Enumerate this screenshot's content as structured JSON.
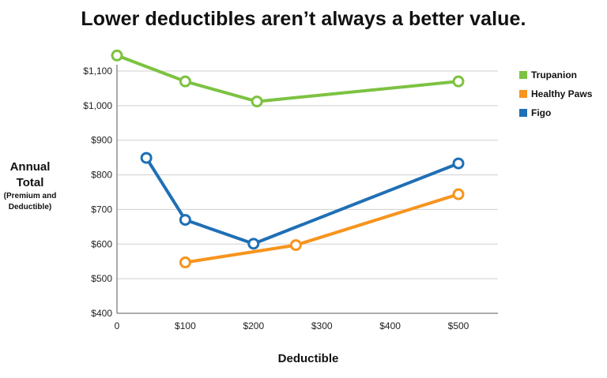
{
  "chart_data": {
    "type": "line",
    "title": "Lower deductibles aren’t always a better value.",
    "xlabel": "Deductible",
    "ylabel": "Annual Total",
    "ylabel_sub": "(Premium and Deductible)",
    "xlim": [
      0,
      550
    ],
    "ylim": [
      400,
      1150
    ],
    "x_ticks": [
      0,
      100,
      200,
      300,
      400,
      500
    ],
    "x_tick_labels": [
      "0",
      "$100",
      "$200",
      "$300",
      "$400",
      "$500"
    ],
    "y_ticks": [
      400,
      500,
      600,
      700,
      800,
      900,
      1000,
      1100
    ],
    "y_tick_labels": [
      "$400",
      "$500",
      "$600",
      "$700",
      "$800",
      "$900",
      "$1,000",
      "$1,100"
    ],
    "grid": true,
    "legend_position": "top-right",
    "series": [
      {
        "name": "Trupanion",
        "color": "#7dc242",
        "points": [
          [
            0,
            1145
          ],
          [
            100,
            1070
          ],
          [
            205,
            1012
          ],
          [
            500,
            1070
          ]
        ]
      },
      {
        "name": "Healthy Paws",
        "color": "#f7941d",
        "points": [
          [
            100,
            547
          ],
          [
            262,
            597
          ],
          [
            500,
            744
          ]
        ]
      },
      {
        "name": "Figo",
        "color": "#1f6fb5",
        "points": [
          [
            43,
            849
          ],
          [
            100,
            670
          ],
          [
            200,
            601
          ],
          [
            500,
            833
          ]
        ]
      }
    ]
  }
}
